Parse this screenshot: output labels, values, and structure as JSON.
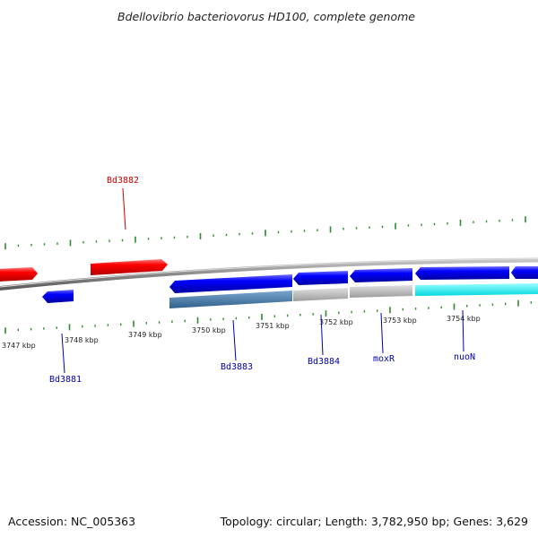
{
  "title": "Bdellovibrio bacteriovorus HD100, complete genome",
  "footer": {
    "accession": "Accession: NC_005363",
    "summary": "Topology: circular; Length: 3,782,950 bp; Genes: 3,629"
  },
  "colors": {
    "reverse_gene": "#ff0000",
    "forward_gene": "#0000ff",
    "backbone": "#8c8c8c",
    "ticks": "#2e8b2e",
    "label_reverse": "#cc0000",
    "label_forward": "#0000aa",
    "feature_steel": "#4a7fae",
    "feature_gray": "#bdbdbd",
    "feature_cyan": "#00ffff"
  },
  "scale_labels": [
    "3747 kbp",
    "3748 kbp",
    "3749 kbp",
    "3750 kbp",
    "3751 kbp",
    "3752 kbp",
    "3753 kbp",
    "3754 kbp"
  ],
  "gene_labels": [
    {
      "text": "Bd3882",
      "strand": "reverse"
    },
    {
      "text": "Bd3881",
      "strand": "forward"
    },
    {
      "text": "Bd3883",
      "strand": "forward"
    },
    {
      "text": "Bd3884",
      "strand": "forward"
    },
    {
      "text": "moxR",
      "strand": "forward"
    },
    {
      "text": "nuoN",
      "strand": "forward"
    }
  ]
}
